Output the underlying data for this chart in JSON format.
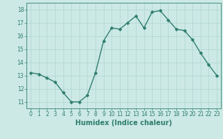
{
  "x": [
    0,
    1,
    2,
    3,
    4,
    5,
    6,
    7,
    8,
    9,
    10,
    11,
    12,
    13,
    14,
    15,
    16,
    17,
    18,
    19,
    20,
    21,
    22,
    23
  ],
  "y": [
    13.2,
    13.1,
    12.8,
    12.5,
    11.7,
    11.0,
    11.0,
    11.5,
    13.2,
    15.6,
    16.6,
    16.5,
    17.0,
    17.5,
    16.6,
    17.8,
    17.9,
    17.2,
    16.5,
    16.4,
    15.7,
    14.7,
    13.8,
    13.0
  ],
  "line_color": "#2e7d6e",
  "bg_color": "#cce9e5",
  "grid_color": "#aed4cf",
  "xlabel": "Humidex (Indice chaleur)",
  "xlim": [
    -0.5,
    23.5
  ],
  "ylim": [
    10.5,
    18.5
  ],
  "yticks": [
    11,
    12,
    13,
    14,
    15,
    16,
    17,
    18
  ],
  "xticks": [
    0,
    1,
    2,
    3,
    4,
    5,
    6,
    7,
    8,
    9,
    10,
    11,
    12,
    13,
    14,
    15,
    16,
    17,
    18,
    19,
    20,
    21,
    22,
    23
  ],
  "markersize": 2.5,
  "linewidth": 1.0,
  "tick_fontsize": 5.5,
  "xlabel_fontsize": 7.0
}
